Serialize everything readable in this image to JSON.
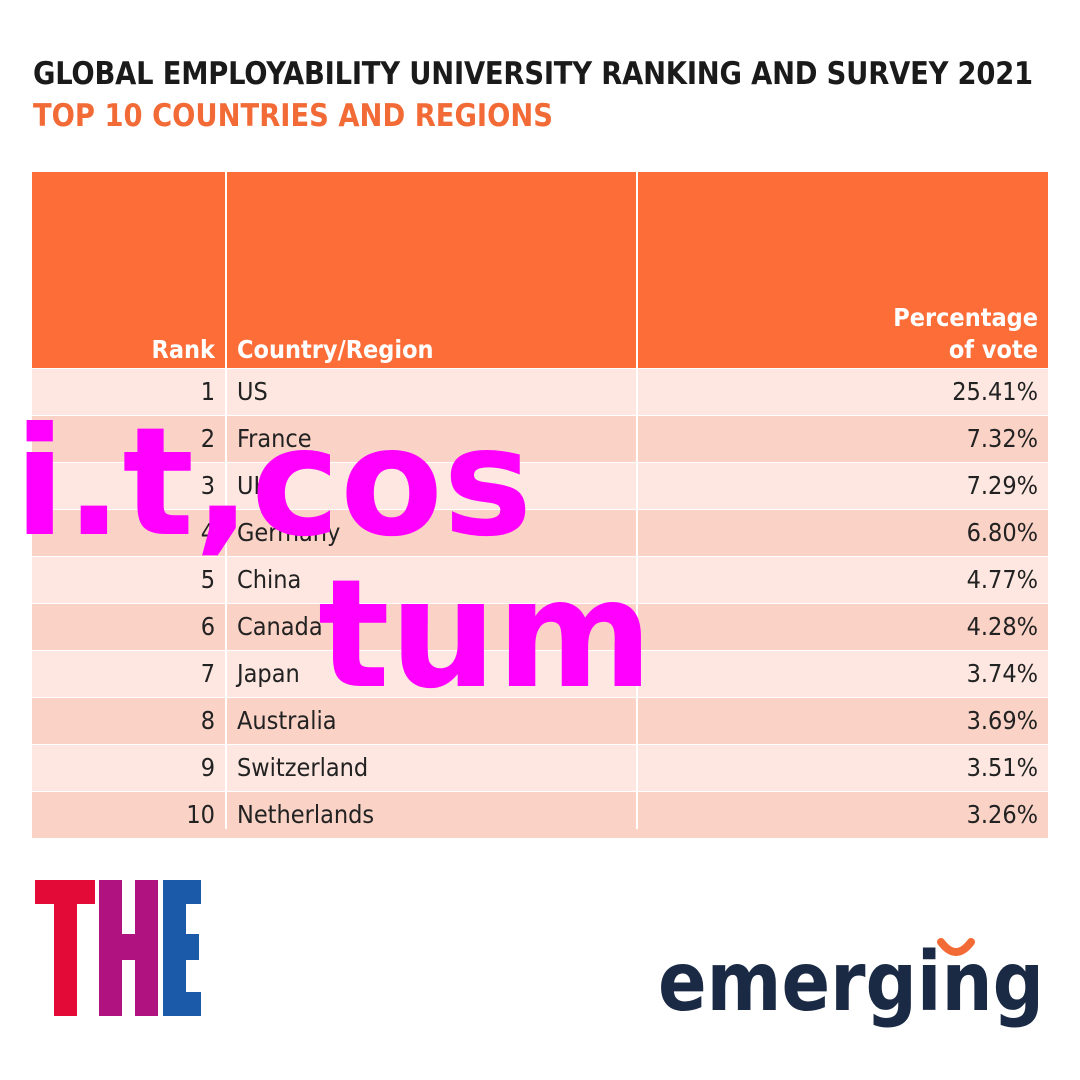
{
  "title": "GLOBAL EMPLOYABILITY UNIVERSITY RANKING AND SURVEY 2021",
  "subtitle": "TOP 10 COUNTRIES AND REGIONS",
  "colors": {
    "header_bg": "#fc6d38",
    "subtitle": "#f26a35",
    "row_light": "#fde7e0",
    "row_dark": "#fad3c6",
    "watermark": "#ff00ff",
    "the_red": "#e30a38",
    "the_purple": "#b0137f",
    "the_blue": "#1b5aa8",
    "emerging_navy": "#1b2a44",
    "emerging_orange": "#f26a35"
  },
  "chart_data": {
    "type": "table",
    "columns": [
      "Rank",
      "Country/Region",
      "Percentage of vote"
    ],
    "header_lines": {
      "rank": "Rank",
      "country": "Country/Region",
      "pct_line1": "Percentage",
      "pct_line2": "of vote"
    },
    "rows": [
      {
        "rank": "1",
        "country": "US",
        "pct": "25.41%"
      },
      {
        "rank": "2",
        "country": "France",
        "pct": "7.32%"
      },
      {
        "rank": "3",
        "country": "UK",
        "pct": "7.29%"
      },
      {
        "rank": "4",
        "country": "Germany",
        "pct": "6.80%"
      },
      {
        "rank": "5",
        "country": "China",
        "pct": "4.77%"
      },
      {
        "rank": "6",
        "country": "Canada",
        "pct": "4.28%"
      },
      {
        "rank": "7",
        "country": "Japan",
        "pct": "3.74%"
      },
      {
        "rank": "8",
        "country": "Australia",
        "pct": "3.69%"
      },
      {
        "rank": "9",
        "country": "Switzerland",
        "pct": "3.51%"
      },
      {
        "rank": "10",
        "country": "Netherlands",
        "pct": "3.26%"
      }
    ]
  },
  "watermark": {
    "line1": "i.t,cos",
    "line2": "tum"
  },
  "logos": {
    "the": "THE",
    "emerging": "emerging"
  }
}
